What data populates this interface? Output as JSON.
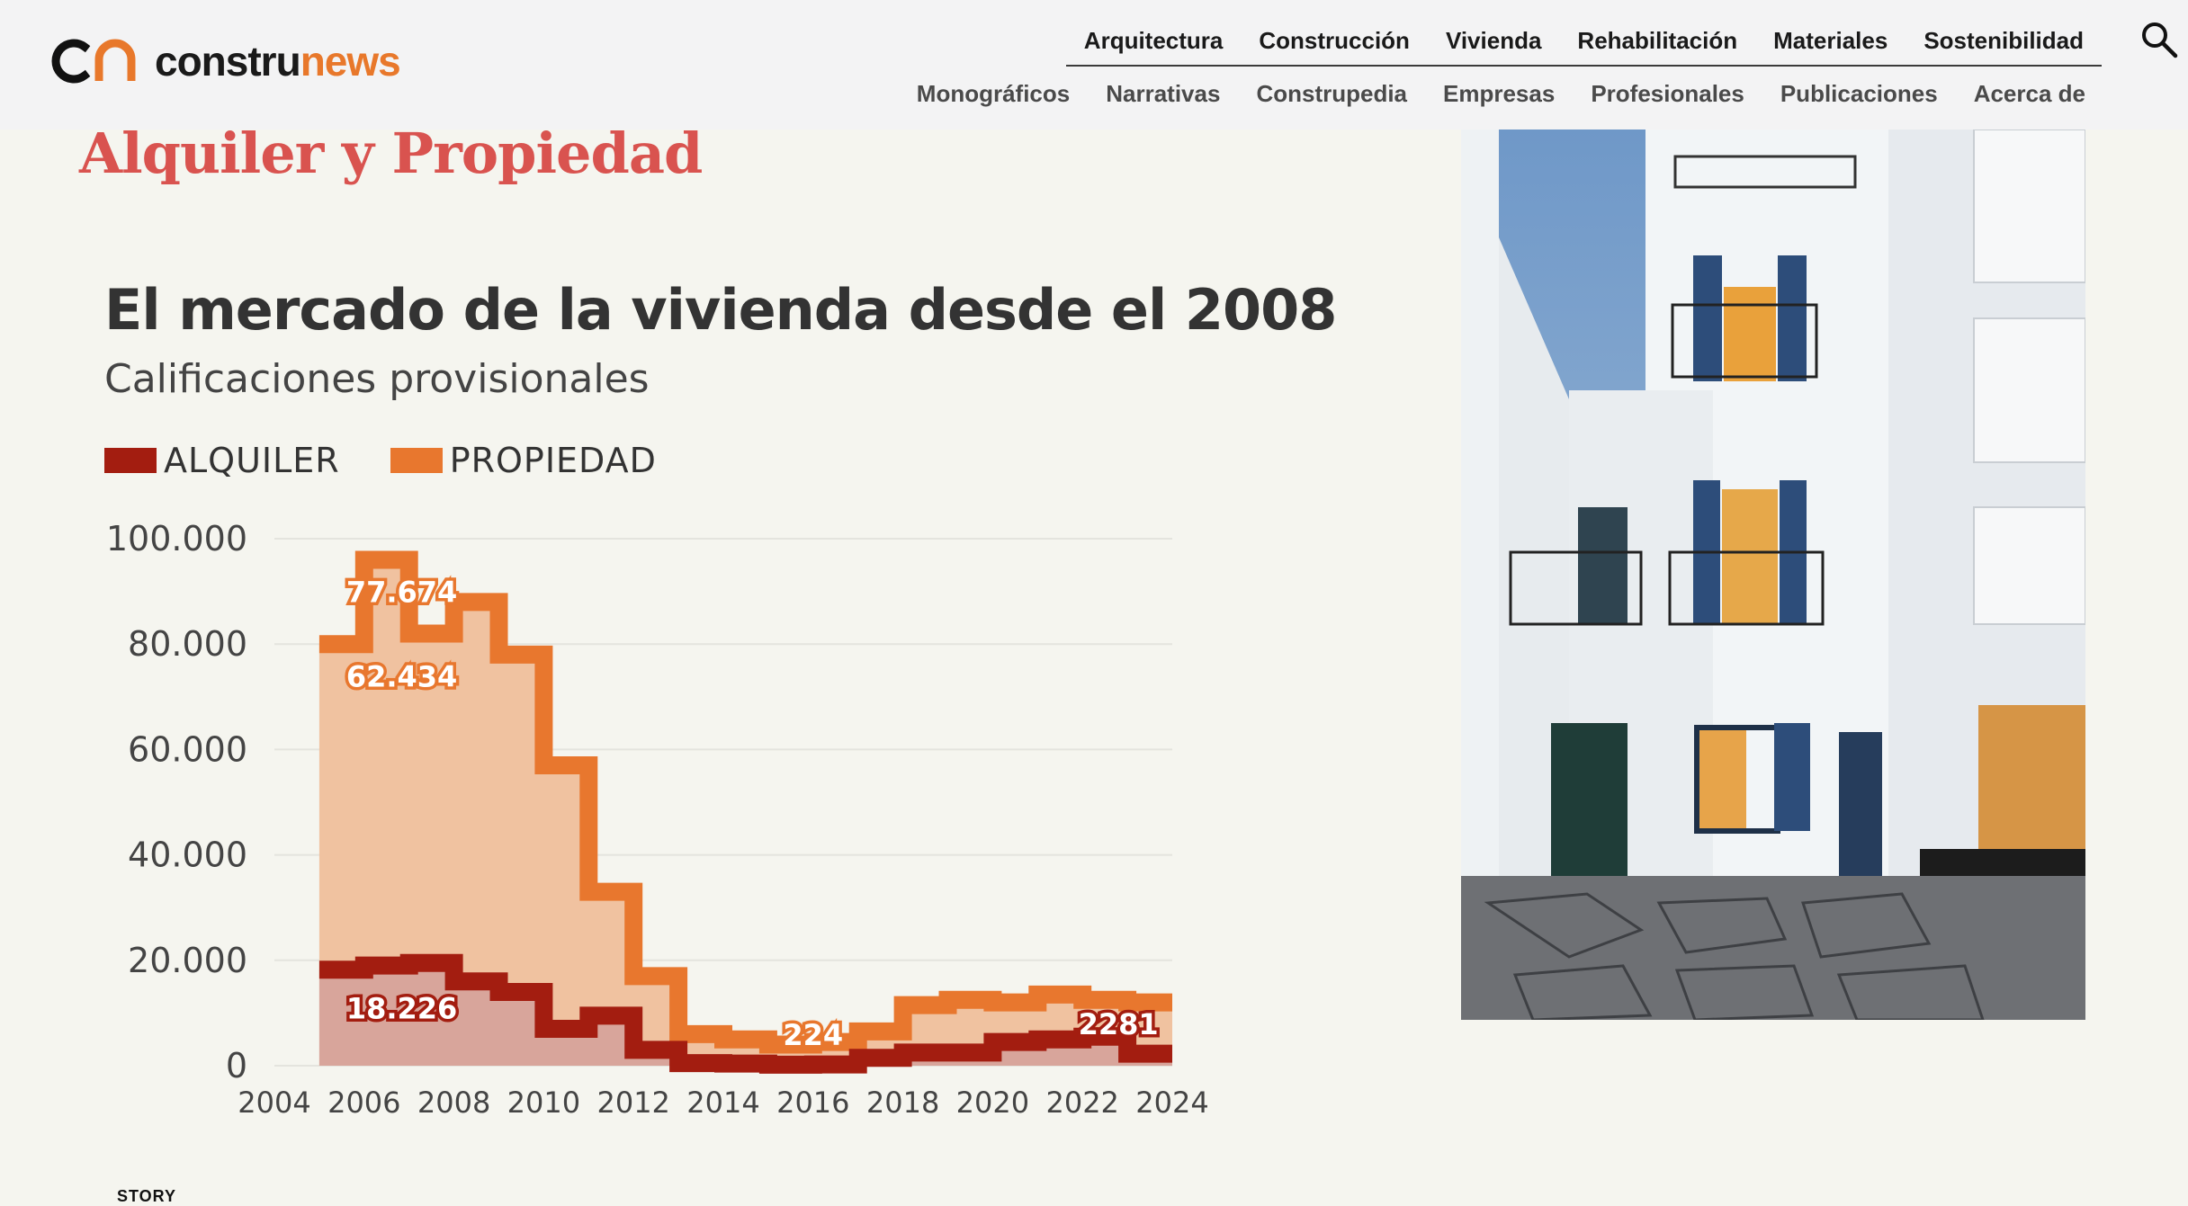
{
  "brand": {
    "logo_text_a": "constru",
    "logo_text_b": "news",
    "accent": "#e8782b"
  },
  "nav": {
    "primary": [
      "Arquitectura",
      "Construcción",
      "Vivienda",
      "Rehabilitación",
      "Materiales",
      "Sostenibilidad"
    ],
    "secondary": [
      "Monográficos",
      "Narrativas",
      "Construpedia",
      "Empresas",
      "Profesionales",
      "Publicaciones",
      "Acerca de"
    ]
  },
  "section": {
    "title": "Alquiler y Propiedad",
    "color": "#d9534f"
  },
  "footer": {
    "story_label": "STORY"
  },
  "chart_data": {
    "type": "area",
    "title": "El mercado de la vivienda desde el 2008",
    "subtitle": "Calificaciones provisionales",
    "legend": [
      {
        "name": "ALQUILER",
        "color": "#a31d10"
      },
      {
        "name": "PROPIEDAD",
        "color": "#e8772e"
      }
    ],
    "step": true,
    "x": [
      2005,
      2006,
      2007,
      2008,
      2009,
      2010,
      2011,
      2012,
      2013,
      2014,
      2015,
      2016,
      2017,
      2018,
      2019,
      2020,
      2021,
      2022,
      2023
    ],
    "series": [
      {
        "name": "PROPIEDAD",
        "color": "#e8772e",
        "fill": "#f0c2a0",
        "values": [
          80000,
          96000,
          82000,
          88000,
          78000,
          57000,
          33000,
          17000,
          6000,
          5000,
          4000,
          4500,
          6500,
          11500,
          12500,
          12000,
          13500,
          12500,
          12000
        ]
      },
      {
        "name": "ALQUILER",
        "color": "#a31d10",
        "fill": "#d4a09a",
        "values": [
          18226,
          19000,
          19500,
          16000,
          14000,
          7000,
          9500,
          3000,
          500,
          400,
          200,
          224,
          1500,
          2500,
          2500,
          4500,
          5000,
          5500,
          2281
        ]
      }
    ],
    "annotations": [
      {
        "text": "77.674",
        "x": 2005.6,
        "y": 90000,
        "series": "PROPIEDAD"
      },
      {
        "text": "62.434",
        "x": 2005.6,
        "y": 74000,
        "series": "PROPIEDAD"
      },
      {
        "text": "18.226",
        "x": 2005.6,
        "y": 11000,
        "series": "ALQUILER"
      },
      {
        "text": "224",
        "x": 2016.0,
        "y": 6000,
        "series": "PROPIEDAD"
      },
      {
        "text": "2281",
        "x": 2022.8,
        "y": 8000,
        "series": "ALQUILER"
      }
    ],
    "xlim": [
      2004,
      2024
    ],
    "ylim": [
      0,
      100000
    ],
    "xticks": [
      2004,
      2006,
      2008,
      2010,
      2012,
      2014,
      2016,
      2018,
      2020,
      2022,
      2024
    ],
    "xtick_labels": [
      "2004",
      "2006",
      "2008",
      "2010",
      "2012",
      "2014",
      "2016",
      "2018",
      "2020",
      "2022",
      "2024"
    ],
    "yticks": [
      0,
      20000,
      40000,
      60000,
      80000,
      100000
    ],
    "ytick_labels": [
      "0",
      "20.000",
      "40.000",
      "60.000",
      "80.000",
      "100.000"
    ],
    "grid": true
  }
}
